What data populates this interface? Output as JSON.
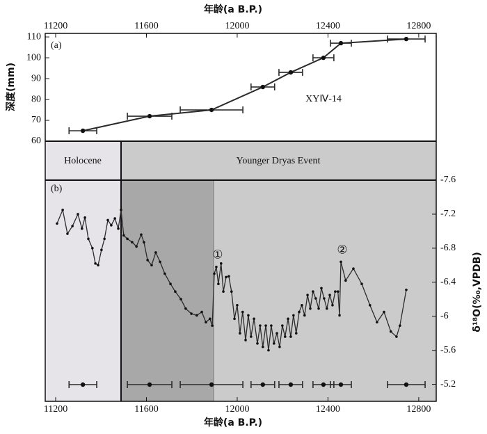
{
  "chart_data": [
    {
      "type": "line",
      "panel_label": "(a)",
      "annotation": "XYⅣ-14",
      "x_title": "年龄(a B.P.)",
      "y_title": "深度(mm)",
      "x": [
        11320,
        11614,
        11887,
        12113,
        12236,
        12380,
        12457,
        12745
      ],
      "xerr": [
        61,
        98,
        138,
        52,
        52,
        46,
        46,
        83
      ],
      "values": [
        65,
        72,
        75,
        86,
        93,
        100,
        107,
        109
      ],
      "xlim": [
        11154,
        12877
      ],
      "xticks": [
        11200,
        11600,
        12000,
        12400,
        12800
      ],
      "ylim": [
        60,
        111.7
      ],
      "yticks": [
        60,
        70,
        80,
        90,
        100,
        110
      ],
      "color": "#2b2b2b"
    },
    {
      "type": "line",
      "panel_label": "(b)",
      "zones": [
        "Holocene",
        "Younger Dryas Event"
      ],
      "markers": [
        "①",
        "②"
      ],
      "x_title": "年龄(a B.P.)",
      "y_title": "δ¹⁸O(‰,VPDB)",
      "x": [
        11206,
        11231,
        11252,
        11274,
        11298,
        11316,
        11329,
        11344,
        11362,
        11375,
        11387,
        11402,
        11415,
        11430,
        11445,
        11461,
        11476,
        11488,
        11500,
        11516,
        11537,
        11556,
        11577,
        11589,
        11605,
        11623,
        11641,
        11660,
        11681,
        11706,
        11727,
        11752,
        11773,
        11798,
        11822,
        11844,
        11862,
        11880,
        11890,
        11899,
        11908,
        11917,
        11929,
        11939,
        11951,
        11963,
        11975,
        11988,
        12000,
        12012,
        12024,
        12037,
        12049,
        12061,
        12074,
        12089,
        12101,
        12113,
        12126,
        12138,
        12150,
        12162,
        12175,
        12187,
        12199,
        12211,
        12224,
        12236,
        12248,
        12260,
        12273,
        12285,
        12297,
        12310,
        12322,
        12334,
        12346,
        12359,
        12371,
        12383,
        12395,
        12408,
        12420,
        12432,
        12444,
        12451,
        12457,
        12478,
        12512,
        12549,
        12585,
        12616,
        12647,
        12677,
        12702,
        12717,
        12745
      ],
      "values": [
        -7.09,
        -7.25,
        -6.97,
        -7.06,
        -7.2,
        -7.03,
        -7.16,
        -6.91,
        -6.8,
        -6.62,
        -6.6,
        -6.78,
        -6.91,
        -7.13,
        -7.07,
        -7.15,
        -7.03,
        -7.25,
        -6.95,
        -6.91,
        -6.87,
        -6.82,
        -6.96,
        -6.87,
        -6.66,
        -6.6,
        -6.75,
        -6.64,
        -6.5,
        -6.38,
        -6.29,
        -6.2,
        -6.09,
        -6.03,
        -6.01,
        -6.05,
        -5.93,
        -5.97,
        -5.89,
        -6.5,
        -6.58,
        -6.38,
        -6.62,
        -6.29,
        -6.46,
        -6.47,
        -6.29,
        -5.97,
        -6.13,
        -5.8,
        -6.05,
        -5.72,
        -6.01,
        -5.76,
        -5.97,
        -5.68,
        -5.89,
        -5.64,
        -5.89,
        -5.6,
        -5.89,
        -5.68,
        -5.8,
        -5.64,
        -5.89,
        -5.76,
        -5.97,
        -5.76,
        -6.01,
        -5.8,
        -6.05,
        -6.13,
        -6.01,
        -6.25,
        -6.09,
        -6.29,
        -6.21,
        -6.09,
        -6.33,
        -6.21,
        -6.09,
        -6.25,
        -6.13,
        -6.29,
        -6.29,
        -6.01,
        -6.64,
        -6.42,
        -6.56,
        -6.38,
        -6.13,
        -5.93,
        -6.05,
        -5.82,
        -5.76,
        -5.89,
        -6.31
      ],
      "xlim": [
        11154,
        12877
      ],
      "xticks": [
        11200,
        11600,
        12000,
        12400,
        12800
      ],
      "ylim": [
        -5.0,
        -7.6
      ],
      "yticks": [
        -7.6,
        -7.2,
        -6.8,
        -6.4,
        -6.0,
        -5.6,
        -5.2
      ],
      "color": "#2b2b2b"
    }
  ]
}
